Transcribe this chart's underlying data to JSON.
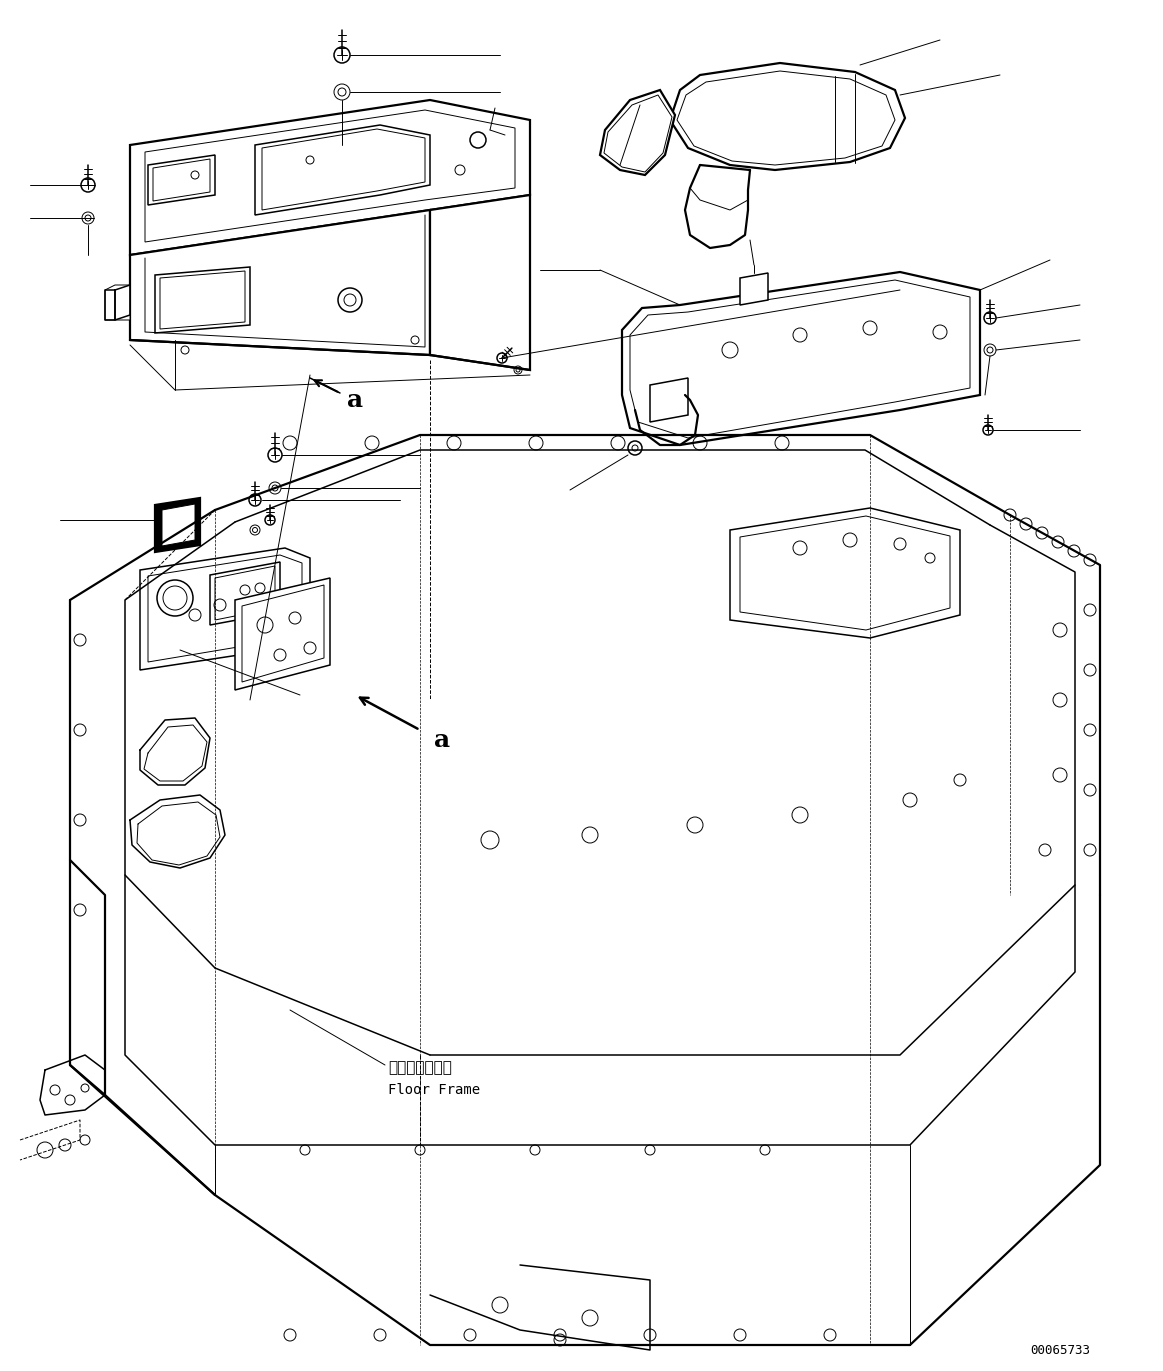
{
  "figure_width": 11.63,
  "figure_height": 13.71,
  "dpi": 100,
  "background_color": "#ffffff",
  "line_color": "#000000",
  "part_number": "00065733",
  "label_a": "a",
  "floor_frame_jp": "フロアフレーム",
  "floor_frame_en": "Floor Frame"
}
